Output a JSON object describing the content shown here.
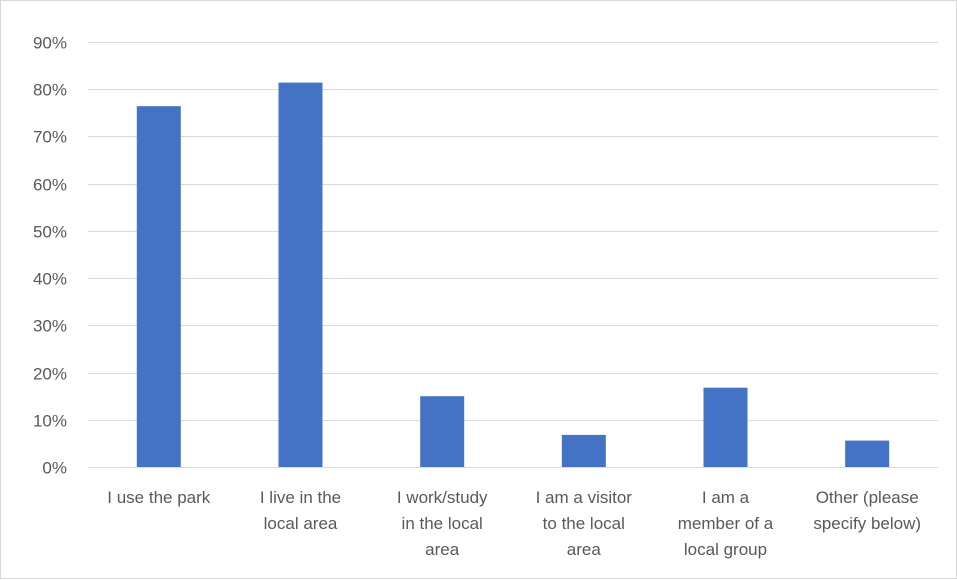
{
  "chart_data": {
    "type": "bar",
    "title": "",
    "xlabel": "",
    "ylabel": "",
    "categories": [
      [
        "I use the park"
      ],
      [
        "I live in the",
        "local area"
      ],
      [
        "I work/study",
        "in the local",
        "area"
      ],
      [
        "I am a visitor",
        "to the local",
        "area"
      ],
      [
        "I am a",
        "member of a",
        "local group"
      ],
      [
        "Other (please",
        "specify below)"
      ]
    ],
    "values": [
      76.4,
      81.4,
      15.0,
      6.8,
      16.8,
      5.6
    ],
    "ylim": [
      0,
      90
    ],
    "yticks": [
      0,
      10,
      20,
      30,
      40,
      50,
      60,
      70,
      80,
      90
    ],
    "ytick_labels": [
      "0%",
      "10%",
      "20%",
      "30%",
      "40%",
      "50%",
      "60%",
      "70%",
      "80%",
      "90%"
    ],
    "grid": true,
    "legend": "none",
    "colors": {
      "bar": "#4472c4",
      "grid": "#d9d9d9",
      "axis": "#d9d9d9",
      "text": "#595959"
    }
  }
}
